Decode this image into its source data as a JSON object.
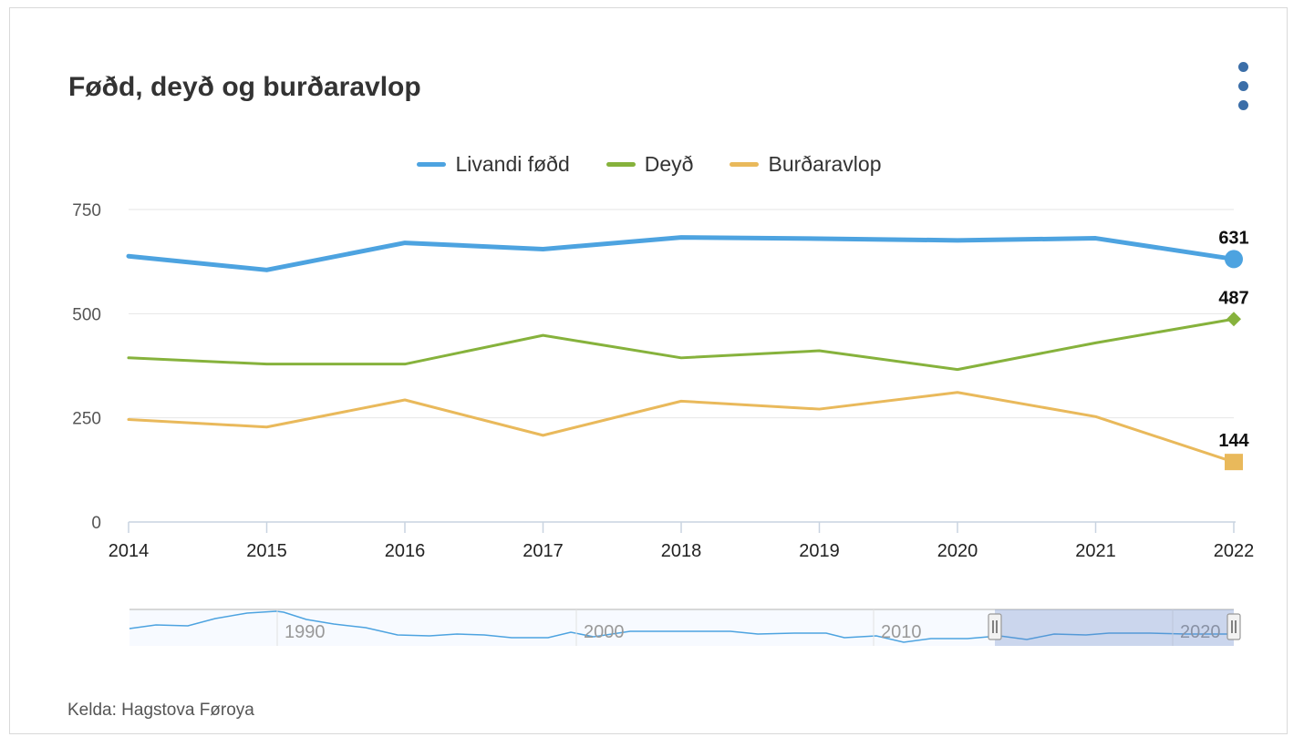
{
  "title": "Føðd, deyð og burðaravlop",
  "source": "Kelda: Hagstova Føroya",
  "menu_icon": "kebab-menu-icon",
  "legend": [
    {
      "label": "Livandi føðd",
      "color": "#4da3e0"
    },
    {
      "label": "Deyð",
      "color": "#86b23c"
    },
    {
      "label": "Burðaravlop",
      "color": "#e9b95b"
    }
  ],
  "chart_data": {
    "type": "line",
    "title": "Føðd, deyð og burðaravlop",
    "xlabel": "",
    "ylabel": "",
    "x": [
      "2014",
      "2015",
      "2016",
      "2017",
      "2018",
      "2019",
      "2020",
      "2021",
      "2022"
    ],
    "ylim": [
      0,
      750
    ],
    "yticks": [
      "0",
      "250",
      "500",
      "750"
    ],
    "grid": true,
    "legend_position": "top-center",
    "series": [
      {
        "name": "Livandi føðd",
        "color": "#4da3e0",
        "values": [
          638,
          605,
          670,
          655,
          683,
          680,
          676,
          681,
          631
        ],
        "last_label": "631",
        "marker": "circle"
      },
      {
        "name": "Deyð",
        "color": "#86b23c",
        "values": [
          394,
          379,
          379,
          448,
          394,
          411,
          366,
          430,
          487
        ],
        "last_label": "487",
        "marker": "diamond"
      },
      {
        "name": "Burðaravlop",
        "color": "#e9b95b",
        "values": [
          246,
          228,
          293,
          208,
          290,
          271,
          311,
          253,
          144
        ],
        "last_label": "144",
        "marker": "square"
      }
    ]
  },
  "navigator": {
    "labels": [
      "1990",
      "2000",
      "2010",
      "2020"
    ],
    "selection": [
      "2014",
      "2022"
    ]
  }
}
